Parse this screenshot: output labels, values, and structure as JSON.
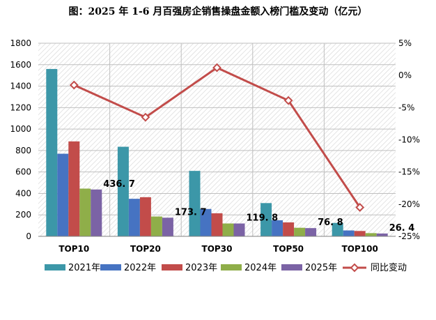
{
  "chart_data": {
    "type": "bar",
    "title": "图：2025 年 1-6 月百强房企销售操盘金额入榜门槛及变动（亿元）",
    "categories": [
      "TOP10",
      "TOP20",
      "TOP30",
      "TOP50",
      "TOP100"
    ],
    "series": [
      {
        "name": "2021年",
        "color": "#3c97a8",
        "values": [
          1560,
          835,
          610,
          310,
          125
        ]
      },
      {
        "name": "2022年",
        "color": "#4673c2",
        "values": [
          770,
          350,
          255,
          150,
          55
        ]
      },
      {
        "name": "2023年",
        "color": "#c24c4a",
        "values": [
          885,
          365,
          215,
          130,
          50
        ]
      },
      {
        "name": "2024年",
        "color": "#8fae49",
        "values": [
          445,
          185,
          120,
          80,
          30
        ]
      },
      {
        "name": "2025年",
        "color": "#7b63a5",
        "values": [
          436.7,
          173.7,
          119.8,
          76.8,
          26.4
        ]
      }
    ],
    "data_labels": [
      "436. 7",
      "173. 7",
      "119. 8",
      "76. 8",
      "26. 4"
    ],
    "line": {
      "name": "同比变动",
      "color": "#c24c4a",
      "values": [
        -1.5,
        -6.5,
        1.2,
        -3.9,
        -20.5
      ]
    },
    "y_left": {
      "min": 0,
      "max": 1800,
      "step": 200,
      "ticks": [
        "0",
        "200",
        "400",
        "600",
        "800",
        "1000",
        "1200",
        "1400",
        "1600",
        "1800"
      ]
    },
    "y_right": {
      "min": -25,
      "max": 5,
      "step": 5,
      "ticks": [
        "-25%",
        "-20%",
        "-15%",
        "-10%",
        "-5%",
        "0%",
        "5%"
      ]
    },
    "grid": true,
    "legend_position": "bottom"
  }
}
